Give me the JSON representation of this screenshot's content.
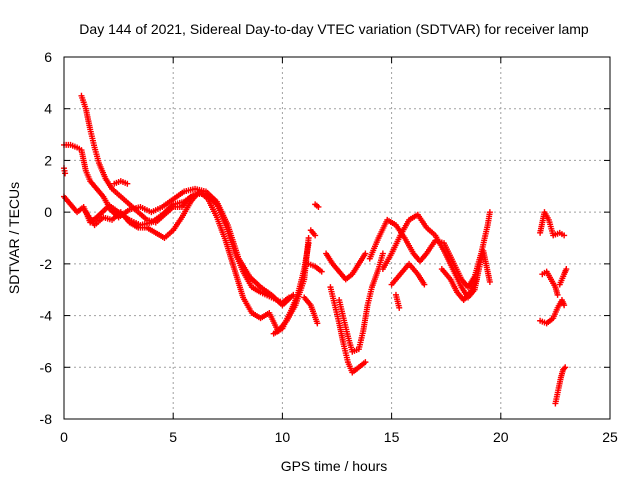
{
  "chart_data": {
    "type": "scatter",
    "title": "Day 144 of 2021, Sidereal Day-to-day VTEC variation (SDTVAR) for receiver lamp",
    "xlabel": "GPS time / hours",
    "ylabel": "SDTVAR / TECUs",
    "xlim": [
      0,
      25
    ],
    "ylim": [
      -8,
      6
    ],
    "xticks": [
      0,
      5,
      10,
      15,
      20,
      25
    ],
    "yticks": [
      -8,
      -6,
      -4,
      -2,
      0,
      2,
      4,
      6
    ],
    "grid": true,
    "marker": "+",
    "series": [
      {
        "name": "SDTVAR",
        "color": "#ff0000",
        "tracks": [
          [
            [
              0.0,
              2.6
            ],
            [
              0.3,
              2.6
            ],
            [
              0.6,
              2.5
            ],
            [
              0.8,
              2.4
            ],
            [
              1.0,
              1.6
            ],
            [
              1.2,
              1.2
            ],
            [
              1.5,
              0.9
            ],
            [
              1.8,
              0.6
            ],
            [
              2.0,
              0.3
            ],
            [
              2.5,
              0.0
            ],
            [
              3.0,
              -0.3
            ],
            [
              3.5,
              -0.5
            ],
            [
              4.0,
              -0.4
            ],
            [
              4.5,
              -0.1
            ],
            [
              5.0,
              0.3
            ],
            [
              5.5,
              0.4
            ],
            [
              6.0,
              0.7
            ],
            [
              6.5,
              0.7
            ],
            [
              7.0,
              0.3
            ],
            [
              7.4,
              -0.5
            ],
            [
              7.8,
              -1.5
            ],
            [
              8.2,
              -2.3
            ],
            [
              8.6,
              -2.9
            ],
            [
              9.0,
              -3.1
            ],
            [
              9.5,
              -3.3
            ],
            [
              10.0,
              -3.5
            ],
            [
              10.3,
              -3.3
            ]
          ],
          [
            [
              0.0,
              0.6
            ],
            [
              0.3,
              0.3
            ],
            [
              0.6,
              0.0
            ],
            [
              0.9,
              0.2
            ],
            [
              1.2,
              -0.4
            ],
            [
              1.5,
              -0.2
            ],
            [
              2.0,
              0.2
            ],
            [
              2.5,
              -0.2
            ],
            [
              3.0,
              0.1
            ],
            [
              3.5,
              0.2
            ],
            [
              4.0,
              0.0
            ],
            [
              4.5,
              0.2
            ],
            [
              5.0,
              0.5
            ],
            [
              5.5,
              0.8
            ],
            [
              6.0,
              0.9
            ],
            [
              6.5,
              0.8
            ],
            [
              7.0,
              0.4
            ],
            [
              7.5,
              -0.5
            ],
            [
              8.0,
              -1.8
            ],
            [
              8.5,
              -2.5
            ],
            [
              9.0,
              -2.9
            ],
            [
              9.5,
              -3.2
            ],
            [
              10.0,
              -3.6
            ],
            [
              10.5,
              -3.2
            ]
          ],
          [
            [
              0.8,
              4.5
            ],
            [
              1.0,
              4.0
            ],
            [
              1.2,
              3.2
            ],
            [
              1.4,
              2.5
            ],
            [
              1.6,
              1.9
            ],
            [
              1.9,
              1.3
            ],
            [
              2.2,
              0.9
            ],
            [
              2.6,
              0.6
            ],
            [
              3.0,
              0.3
            ],
            [
              3.4,
              0.0
            ],
            [
              3.8,
              -0.3
            ],
            [
              4.2,
              -0.4
            ],
            [
              4.6,
              -0.1
            ],
            [
              5.0,
              0.2
            ],
            [
              5.4,
              0.2
            ],
            [
              5.8,
              0.6
            ]
          ],
          [
            [
              1.0,
              0.0
            ],
            [
              1.4,
              -0.5
            ],
            [
              1.8,
              -0.2
            ],
            [
              2.2,
              -0.3
            ],
            [
              2.6,
              0.0
            ],
            [
              3.0,
              -0.4
            ],
            [
              3.4,
              -0.6
            ],
            [
              3.8,
              -0.6
            ],
            [
              4.2,
              -0.8
            ],
            [
              4.6,
              -1.0
            ],
            [
              5.0,
              -0.7
            ],
            [
              5.4,
              -0.2
            ],
            [
              5.8,
              0.4
            ],
            [
              6.2,
              0.8
            ],
            [
              6.6,
              0.5
            ],
            [
              7.0,
              -0.2
            ],
            [
              7.4,
              -1.1
            ],
            [
              7.8,
              -2.2
            ],
            [
              8.2,
              -3.3
            ],
            [
              8.6,
              -3.9
            ],
            [
              9.0,
              -4.1
            ],
            [
              9.4,
              -3.9
            ],
            [
              9.8,
              -4.6
            ],
            [
              10.2,
              -4.2
            ],
            [
              10.6,
              -3.6
            ],
            [
              11.0,
              -2.6
            ],
            [
              11.2,
              -1.0
            ]
          ],
          [
            [
              9.6,
              -4.7
            ],
            [
              10.0,
              -4.5
            ],
            [
              10.4,
              -3.8
            ],
            [
              10.7,
              -3.2
            ],
            [
              11.0,
              -2.2
            ],
            [
              11.2,
              -1.2
            ]
          ],
          [
            [
              0.0,
              1.7
            ],
            [
              0.05,
              1.5
            ]
          ],
          [
            [
              2.3,
              1.1
            ],
            [
              2.6,
              1.2
            ],
            [
              2.9,
              1.1
            ]
          ],
          [
            [
              11.5,
              0.3
            ],
            [
              11.65,
              0.2
            ]
          ],
          [
            [
              11.3,
              -0.7
            ],
            [
              11.5,
              -0.9
            ]
          ],
          [
            [
              11.2,
              -2.0
            ],
            [
              11.5,
              -2.1
            ],
            [
              11.8,
              -2.3
            ]
          ],
          [
            [
              11.0,
              -3.3
            ],
            [
              11.3,
              -3.6
            ],
            [
              11.6,
              -4.3
            ]
          ],
          [
            [
              12.0,
              -1.6
            ],
            [
              12.3,
              -2.0
            ],
            [
              12.6,
              -2.3
            ],
            [
              12.9,
              -2.6
            ],
            [
              13.2,
              -2.4
            ],
            [
              13.5,
              -2.0
            ],
            [
              13.8,
              -1.6
            ]
          ],
          [
            [
              12.2,
              -2.9
            ],
            [
              12.4,
              -3.6
            ],
            [
              12.6,
              -4.3
            ],
            [
              12.8,
              -5.1
            ],
            [
              13.0,
              -5.8
            ],
            [
              13.2,
              -6.2
            ],
            [
              13.5,
              -6.0
            ],
            [
              13.8,
              -5.8
            ]
          ],
          [
            [
              12.6,
              -3.4
            ],
            [
              12.8,
              -4.1
            ],
            [
              13.0,
              -4.8
            ],
            [
              13.2,
              -5.4
            ],
            [
              13.5,
              -5.3
            ],
            [
              13.7,
              -4.6
            ],
            [
              13.9,
              -3.6
            ],
            [
              14.1,
              -2.9
            ],
            [
              14.4,
              -2.2
            ],
            [
              14.6,
              -1.6
            ]
          ],
          [
            [
              14.0,
              -1.8
            ],
            [
              14.4,
              -1.0
            ],
            [
              14.8,
              -0.3
            ],
            [
              15.2,
              -0.5
            ],
            [
              15.6,
              -1.0
            ],
            [
              16.0,
              -1.6
            ],
            [
              16.3,
              -1.9
            ],
            [
              16.6,
              -1.6
            ],
            [
              17.0,
              -1.1
            ],
            [
              17.4,
              -1.2
            ],
            [
              17.8,
              -1.9
            ],
            [
              18.2,
              -2.6
            ],
            [
              18.5,
              -2.9
            ],
            [
              18.8,
              -2.5
            ],
            [
              19.1,
              -1.6
            ],
            [
              19.4,
              -0.5
            ],
            [
              19.5,
              0.0
            ]
          ],
          [
            [
              14.6,
              -2.2
            ],
            [
              15.0,
              -1.6
            ],
            [
              15.4,
              -0.9
            ],
            [
              15.8,
              -0.3
            ],
            [
              16.2,
              -0.1
            ],
            [
              16.6,
              -0.6
            ],
            [
              17.0,
              -0.9
            ],
            [
              17.4,
              -1.5
            ],
            [
              17.8,
              -2.2
            ],
            [
              18.2,
              -2.9
            ],
            [
              18.5,
              -3.3
            ],
            [
              18.8,
              -3.0
            ],
            [
              19.0,
              -2.2
            ],
            [
              19.2,
              -1.5
            ],
            [
              19.4,
              -2.3
            ],
            [
              19.5,
              -2.7
            ]
          ],
          [
            [
              15.0,
              -2.8
            ],
            [
              15.4,
              -2.4
            ],
            [
              15.8,
              -2.0
            ],
            [
              16.2,
              -2.4
            ],
            [
              16.5,
              -2.8
            ]
          ],
          [
            [
              17.3,
              -2.2
            ],
            [
              17.7,
              -2.6
            ],
            [
              18.0,
              -3.1
            ],
            [
              18.3,
              -3.4
            ],
            [
              18.6,
              -3.1
            ],
            [
              18.9,
              -2.6
            ]
          ],
          [
            [
              15.2,
              -3.2
            ],
            [
              15.35,
              -3.7
            ]
          ],
          [
            [
              21.8,
              -0.8
            ],
            [
              22.0,
              0.0
            ],
            [
              22.2,
              -0.3
            ],
            [
              22.4,
              -0.9
            ],
            [
              22.7,
              -0.8
            ],
            [
              22.9,
              -0.9
            ]
          ],
          [
            [
              21.9,
              -2.4
            ],
            [
              22.1,
              -2.3
            ],
            [
              22.3,
              -2.6
            ],
            [
              22.5,
              -2.9
            ],
            [
              22.6,
              -3.2
            ]
          ],
          [
            [
              21.8,
              -4.2
            ],
            [
              22.1,
              -4.3
            ],
            [
              22.4,
              -4.1
            ],
            [
              22.6,
              -3.7
            ],
            [
              22.8,
              -3.4
            ],
            [
              22.9,
              -3.6
            ]
          ],
          [
            [
              22.7,
              -2.8
            ],
            [
              22.9,
              -2.4
            ],
            [
              23.0,
              -2.2
            ]
          ],
          [
            [
              22.5,
              -7.4
            ],
            [
              22.65,
              -6.8
            ],
            [
              22.75,
              -6.4
            ],
            [
              22.85,
              -6.1
            ],
            [
              22.95,
              -6.0
            ]
          ]
        ]
      }
    ]
  }
}
